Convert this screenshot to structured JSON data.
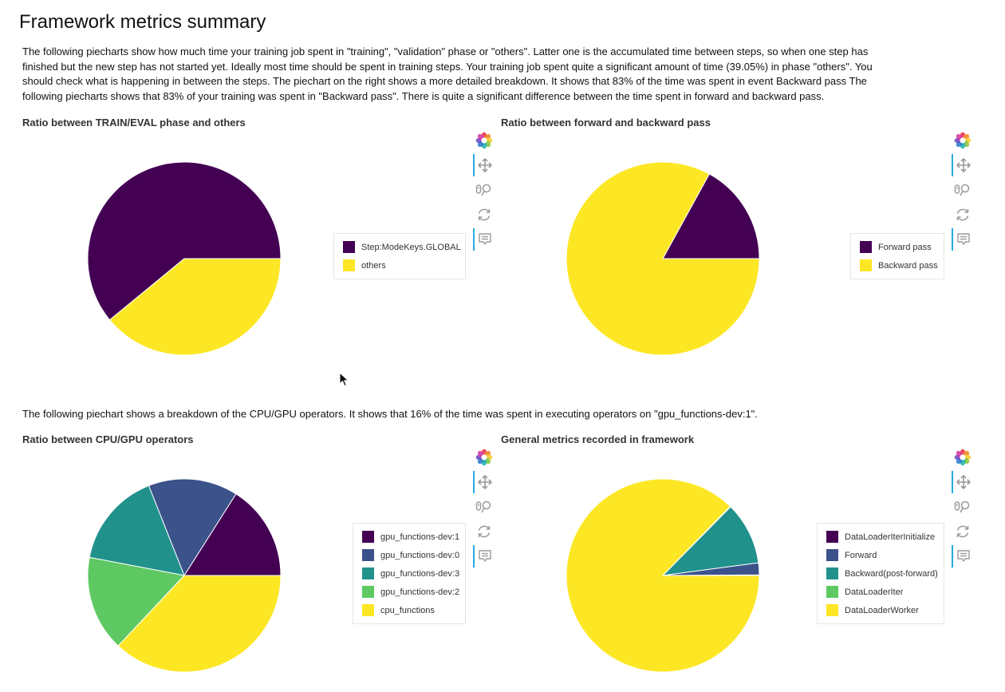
{
  "page": {
    "title": "Framework metrics summary",
    "intro": "The following piecharts show how much time your training job spent in \"training\", \"validation\" phase or \"others\". Latter one is the accumulated time between steps, so when one step has finished but the new step has not started yet. Ideally most time should be spent in training steps. Your training job spent quite a significant amount of time (39.05%) in phase \"others\". You should check what is happening in between the steps. The piechart on the right shows a more detailed breakdown. It shows that 83% of the time was spent in event Backward pass The following piecharts shows that 83% of your training was spent in \"Backward pass\". There is quite a significant difference between the time spent in forward and backward pass.",
    "operators_text": "The following piechart shows a breakdown of the CPU/GPU operators. It shows that 16% of the time was spent in executing operators on \"gpu_functions-dev:1\"."
  },
  "toolbar": {
    "tools": [
      "bokeh-logo-icon",
      "pan-icon",
      "wheel-zoom-icon",
      "reset-icon",
      "hover-icon"
    ]
  },
  "colors": {
    "viridis_dark": "#440154",
    "viridis_blue": "#3b528b",
    "viridis_teal": "#21918c",
    "viridis_green": "#5ec962",
    "viridis_yellow": "#fde725",
    "toolbar_active": "#26aae1"
  },
  "chart_data": [
    {
      "type": "pie",
      "title": "Ratio between TRAIN/EVAL phase and others",
      "start_angle_deg": 0,
      "slices": [
        {
          "label": "Step:ModeKeys.GLOBAL",
          "value": 60.95,
          "color": "#440154"
        },
        {
          "label": "others",
          "value": 39.05,
          "color": "#fde725"
        }
      ]
    },
    {
      "type": "pie",
      "title": "Ratio between forward and backward pass",
      "start_angle_deg": 0,
      "slices": [
        {
          "label": "Forward pass",
          "value": 17,
          "color": "#440154"
        },
        {
          "label": "Backward pass",
          "value": 83,
          "color": "#fde725"
        }
      ]
    },
    {
      "type": "pie",
      "title": "Ratio between CPU/GPU operators",
      "start_angle_deg": 0,
      "slices": [
        {
          "label": "gpu_functions-dev:1",
          "value": 16,
          "color": "#440154"
        },
        {
          "label": "gpu_functions-dev:0",
          "value": 15,
          "color": "#3b528b"
        },
        {
          "label": "gpu_functions-dev:3",
          "value": 16,
          "color": "#21918c"
        },
        {
          "label": "gpu_functions-dev:2",
          "value": 16,
          "color": "#5ec962"
        },
        {
          "label": "cpu_functions",
          "value": 37,
          "color": "#fde725"
        }
      ]
    },
    {
      "type": "pie",
      "title": "General metrics recorded in framework",
      "start_angle_deg": 0,
      "slices": [
        {
          "label": "DataLoaderIterInitialize",
          "value": 0.1,
          "color": "#440154"
        },
        {
          "label": "Forward",
          "value": 2,
          "color": "#3b528b"
        },
        {
          "label": "Backward(post-forward)",
          "value": 10.5,
          "color": "#21918c"
        },
        {
          "label": "DataLoaderIter",
          "value": 0.1,
          "color": "#5ec962"
        },
        {
          "label": "DataLoaderWorker",
          "value": 87.3,
          "color": "#fde725"
        }
      ]
    }
  ]
}
